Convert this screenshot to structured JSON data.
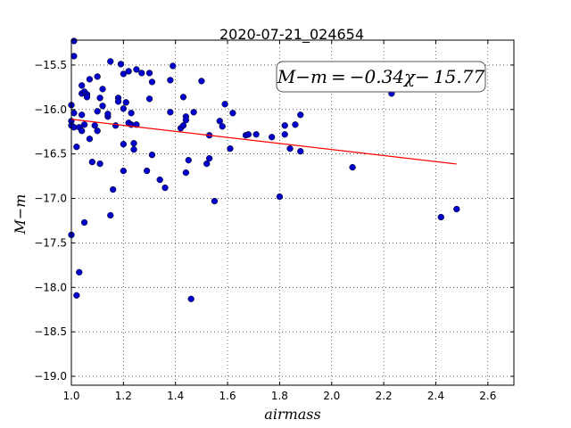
{
  "chart_data": {
    "type": "scatter",
    "title": "2020-07-21_024654",
    "xlabel": "airmass",
    "ylabel": "M−m",
    "xlim": [
      1.0,
      2.7
    ],
    "ylim": [
      -15.22,
      -19.1
    ],
    "y_inverted": true,
    "grid": true,
    "x_ticks": [
      1.0,
      1.2,
      1.4,
      1.6,
      1.8,
      2.0,
      2.2,
      2.4,
      2.6
    ],
    "x_tick_labels": [
      "1.0",
      "1.2",
      "1.4",
      "1.6",
      "1.8",
      "2.0",
      "2.2",
      "2.4",
      "2.6"
    ],
    "y_ticks": [
      -15.5,
      -16.0,
      -16.5,
      -17.0,
      -17.5,
      -18.0,
      -18.5,
      -19.0
    ],
    "y_tick_labels": [
      "−15.5",
      "−16.0",
      "−16.5",
      "−17.0",
      "−17.5",
      "−18.0",
      "−18.5",
      "−19.0"
    ],
    "annotation": "M−m = −0.34χ− 15.77",
    "fit": {
      "slope": -0.34,
      "intercept": -15.77,
      "x_range": [
        1.0,
        2.48
      ],
      "color": "#ff0000"
    },
    "marker_color": "#0000cc",
    "points": [
      [
        1.0,
        -15.95
      ],
      [
        1.0,
        -16.13
      ],
      [
        1.0,
        -16.18
      ],
      [
        1.0,
        -17.41
      ],
      [
        1.01,
        -15.23
      ],
      [
        1.01,
        -15.4
      ],
      [
        1.01,
        -16.04
      ],
      [
        1.01,
        -16.2
      ],
      [
        1.02,
        -16.42
      ],
      [
        1.02,
        -18.09
      ],
      [
        1.03,
        -17.83
      ],
      [
        1.03,
        -16.2
      ],
      [
        1.04,
        -15.82
      ],
      [
        1.04,
        -15.73
      ],
      [
        1.04,
        -16.06
      ],
      [
        1.04,
        -16.24
      ],
      [
        1.05,
        -16.17
      ],
      [
        1.05,
        -15.8
      ],
      [
        1.05,
        -17.27
      ],
      [
        1.06,
        -15.83
      ],
      [
        1.06,
        -15.86
      ],
      [
        1.07,
        -16.33
      ],
      [
        1.07,
        -15.66
      ],
      [
        1.08,
        -16.59
      ],
      [
        1.09,
        -16.18
      ],
      [
        1.1,
        -16.24
      ],
      [
        1.1,
        -16.02
      ],
      [
        1.1,
        -15.63
      ],
      [
        1.11,
        -16.61
      ],
      [
        1.11,
        -15.87
      ],
      [
        1.12,
        -15.77
      ],
      [
        1.12,
        -15.96
      ],
      [
        1.14,
        -16.08
      ],
      [
        1.14,
        -16.05
      ],
      [
        1.15,
        -15.46
      ],
      [
        1.15,
        -17.19
      ],
      [
        1.16,
        -16.9
      ],
      [
        1.17,
        -16.18
      ],
      [
        1.18,
        -15.87
      ],
      [
        1.18,
        -15.91
      ],
      [
        1.19,
        -15.49
      ],
      [
        1.2,
        -15.6
      ],
      [
        1.2,
        -16.39
      ],
      [
        1.2,
        -16.69
      ],
      [
        1.2,
        -15.99
      ],
      [
        1.21,
        -15.92
      ],
      [
        1.22,
        -16.15
      ],
      [
        1.22,
        -15.57
      ],
      [
        1.23,
        -16.17
      ],
      [
        1.23,
        -16.04
      ],
      [
        1.24,
        -16.45
      ],
      [
        1.24,
        -16.38
      ],
      [
        1.25,
        -15.55
      ],
      [
        1.25,
        -16.17
      ],
      [
        1.27,
        -15.59
      ],
      [
        1.29,
        -16.69
      ],
      [
        1.3,
        -15.88
      ],
      [
        1.3,
        -15.59
      ],
      [
        1.31,
        -15.69
      ],
      [
        1.31,
        -16.51
      ],
      [
        1.34,
        -16.79
      ],
      [
        1.36,
        -16.88
      ],
      [
        1.38,
        -15.67
      ],
      [
        1.38,
        -16.03
      ],
      [
        1.39,
        -15.51
      ],
      [
        1.42,
        -16.21
      ],
      [
        1.43,
        -15.86
      ],
      [
        1.43,
        -16.18
      ],
      [
        1.44,
        -16.08
      ],
      [
        1.44,
        -16.12
      ],
      [
        1.44,
        -16.71
      ],
      [
        1.45,
        -16.57
      ],
      [
        1.46,
        -18.13
      ],
      [
        1.47,
        -16.03
      ],
      [
        1.5,
        -15.68
      ],
      [
        1.52,
        -16.61
      ],
      [
        1.53,
        -16.55
      ],
      [
        1.53,
        -16.29
      ],
      [
        1.55,
        -17.03
      ],
      [
        1.57,
        -16.13
      ],
      [
        1.58,
        -16.19
      ],
      [
        1.59,
        -15.94
      ],
      [
        1.61,
        -16.44
      ],
      [
        1.62,
        -16.04
      ],
      [
        1.67,
        -16.29
      ],
      [
        1.68,
        -16.28
      ],
      [
        1.71,
        -16.28
      ],
      [
        1.77,
        -16.31
      ],
      [
        1.8,
        -16.98
      ],
      [
        1.82,
        -16.18
      ],
      [
        1.82,
        -16.28
      ],
      [
        1.84,
        -16.44
      ],
      [
        1.86,
        -16.17
      ],
      [
        1.88,
        -16.47
      ],
      [
        1.88,
        -16.06
      ],
      [
        2.08,
        -16.65
      ],
      [
        2.23,
        -15.82
      ],
      [
        2.42,
        -17.21
      ],
      [
        2.48,
        -17.12
      ]
    ]
  }
}
